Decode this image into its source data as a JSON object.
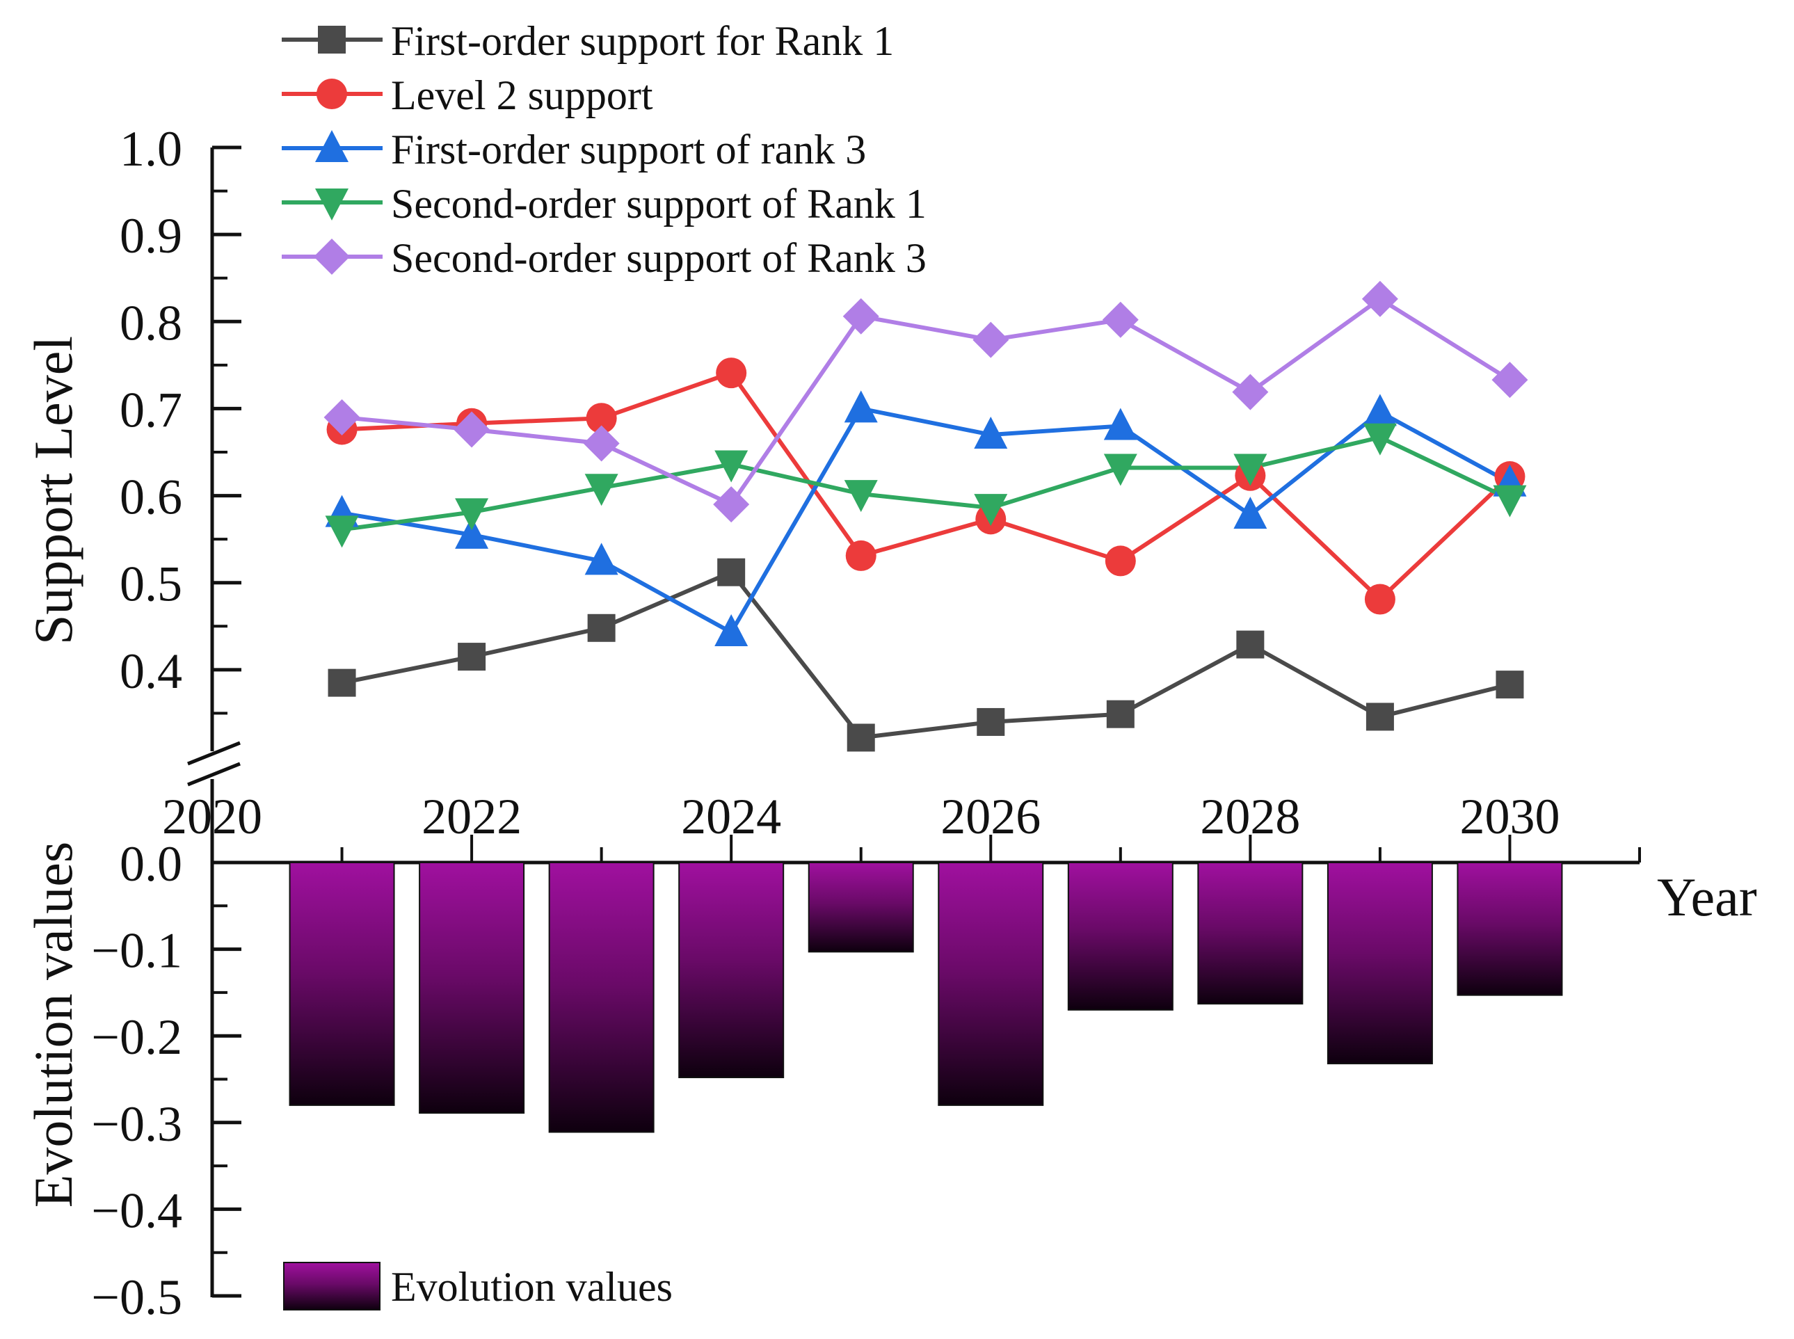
{
  "colors": {
    "series": [
      "#4a4a4a",
      "#ec3b3b",
      "#1f6fe0",
      "#30a860",
      "#b07ee6"
    ],
    "bar_top": "#a0109f",
    "bar_bottom": "#0e000e",
    "axis": "#111111"
  },
  "chart_data": {
    "type": "line+bar",
    "x": [
      2021,
      2022,
      2023,
      2024,
      2025,
      2026,
      2027,
      2028,
      2029,
      2030
    ],
    "xlabel": "Year",
    "xlim": [
      2020,
      2031
    ],
    "x_ticks": [
      2020,
      2022,
      2024,
      2026,
      2028,
      2030
    ],
    "x_tick_labels": [
      "2020",
      "2022",
      "2024",
      "2026",
      "2028",
      "2030"
    ],
    "top_panel": {
      "ylabel": "Support Level",
      "ylim": [
        0.3,
        1.0
      ],
      "axis_break": true,
      "y_ticks": [
        0.4,
        0.5,
        0.6,
        0.7,
        0.8,
        0.9,
        1.0
      ],
      "y_tick_labels": [
        "0.4",
        "0.5",
        "0.6",
        "0.7",
        "0.8",
        "0.9",
        "1.0"
      ],
      "series": [
        {
          "name": "First-order support for Rank 1",
          "marker": "square",
          "values": [
            0.385,
            0.415,
            0.448,
            0.512,
            0.322,
            0.34,
            0.349,
            0.429,
            0.346,
            0.383
          ]
        },
        {
          "name": "Level 2 support",
          "marker": "circle",
          "values": [
            0.676,
            0.683,
            0.689,
            0.741,
            0.531,
            0.573,
            0.525,
            0.623,
            0.481,
            0.622
          ]
        },
        {
          "name": "First-order support of rank 3",
          "marker": "triangle-up",
          "values": [
            0.58,
            0.555,
            0.525,
            0.443,
            0.7,
            0.67,
            0.68,
            0.578,
            0.696,
            0.615
          ]
        },
        {
          "name": "Second-order support of Rank 1",
          "marker": "triangle-down",
          "values": [
            0.561,
            0.581,
            0.609,
            0.636,
            0.602,
            0.586,
            0.632,
            0.632,
            0.667,
            0.596
          ]
        },
        {
          "name": "Second-order support of Rank 3",
          "marker": "diamond",
          "values": [
            0.69,
            0.676,
            0.66,
            0.59,
            0.806,
            0.779,
            0.802,
            0.719,
            0.826,
            0.733
          ]
        }
      ]
    },
    "bottom_panel": {
      "ylabel": "Evolution values",
      "ylim": [
        -0.5,
        0.0
      ],
      "y_ticks": [
        0.0,
        -0.1,
        -0.2,
        -0.3,
        -0.4,
        -0.5
      ],
      "y_tick_labels": [
        "0.0",
        "−0.1",
        "−0.2",
        "−0.3",
        "−0.4",
        "−0.5"
      ],
      "series": [
        {
          "name": "Evolution values",
          "values": [
            -0.28,
            -0.289,
            -0.311,
            -0.248,
            -0.103,
            -0.28,
            -0.17,
            -0.163,
            -0.232,
            -0.153
          ]
        }
      ]
    }
  }
}
